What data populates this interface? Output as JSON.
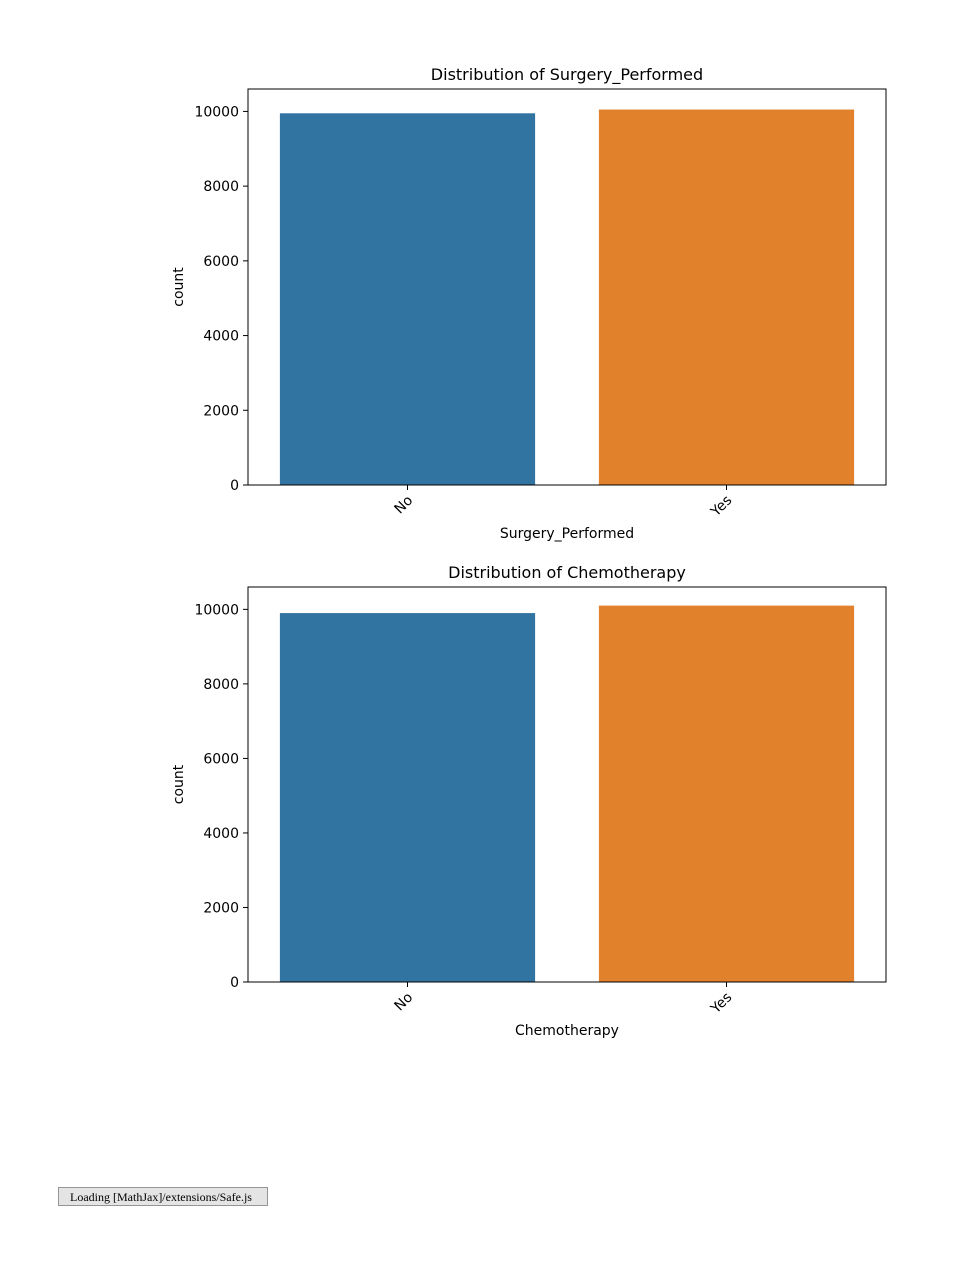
{
  "chart_data": [
    {
      "type": "bar",
      "title": "Distribution of Surgery_Performed",
      "xlabel": "Surgery_Performed",
      "ylabel": "count",
      "categories": [
        "No",
        "Yes"
      ],
      "values": [
        9950,
        10050
      ],
      "colors": [
        "#3274a1",
        "#e1812c"
      ],
      "ylim": [
        0,
        10600
      ],
      "yticks": [
        0,
        2000,
        4000,
        6000,
        8000,
        10000
      ],
      "grid": false
    },
    {
      "type": "bar",
      "title": "Distribution of Chemotherapy",
      "xlabel": "Chemotherapy",
      "ylabel": "count",
      "categories": [
        "No",
        "Yes"
      ],
      "values": [
        9900,
        10100
      ],
      "colors": [
        "#3274a1",
        "#e1812c"
      ],
      "ylim": [
        0,
        10600
      ],
      "yticks": [
        0,
        2000,
        4000,
        6000,
        8000,
        10000
      ],
      "grid": false
    }
  ],
  "status": {
    "text": "Loading [MathJax]/extensions/Safe.js"
  }
}
